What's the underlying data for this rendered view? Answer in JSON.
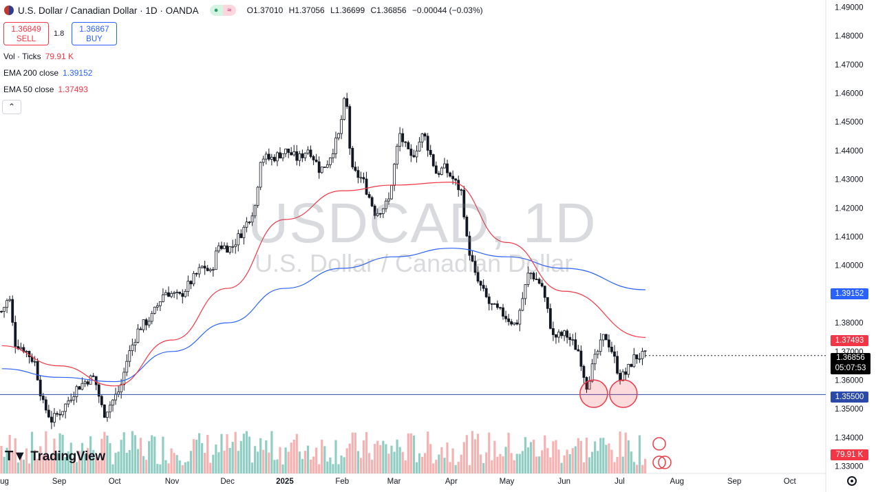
{
  "header": {
    "symbol_title": "U.S. Dollar / Canadian Dollar · 1D · OANDA",
    "ohlc": {
      "o_label": "O",
      "o": "1.37010",
      "h_label": "H",
      "h": "1.37056",
      "l_label": "L",
      "l": "1.36699",
      "c_label": "C",
      "c": "1.36856",
      "change": "−0.00044 (−0.03%)"
    }
  },
  "trade": {
    "sell_price": "1.36849",
    "sell_label": "SELL",
    "spread": "1.8",
    "buy_price": "1.36867",
    "buy_label": "BUY"
  },
  "legend": {
    "vol_label": "Vol · Ticks",
    "vol_value": "79.91 K",
    "ema200_label": "EMA 200 close",
    "ema200_value": "1.39152",
    "ema50_label": "EMA 50 close",
    "ema50_value": "1.37493"
  },
  "watermark": {
    "symbol": "USDCAD, 1D",
    "name": "U.S. Dollar / Canadian Dollar"
  },
  "logo": "TradingView",
  "price_labels": {
    "ema200": "1.39152",
    "ema50": "1.37493",
    "current": "1.36856",
    "countdown": "05:07:53",
    "support": "1.35500",
    "volume": "79.91 K"
  },
  "colors": {
    "up": "#089981",
    "down": "#131722",
    "ema50": "#f23645",
    "ema200": "#2962ff",
    "support": "#2a49a8",
    "vol_up": "#7dc5b8",
    "vol_down": "#f4a3a3",
    "circle": "#f23645"
  },
  "chart_data": {
    "type": "candlestick",
    "title": "USDCAD, 1D",
    "y_axis": {
      "ticks": [
        "1.49000",
        "1.48000",
        "1.47000",
        "1.46000",
        "1.45000",
        "1.44000",
        "1.43000",
        "1.42000",
        "1.41000",
        "1.40000",
        "1.39000",
        "1.38000",
        "1.37000",
        "1.36000",
        "1.35000",
        "1.34000",
        "1.33000"
      ],
      "ylim": [
        1.3275,
        1.4925
      ]
    },
    "x_axis": {
      "ticks": [
        "Aug",
        "Sep",
        "Oct",
        "Nov",
        "Dec",
        "2025",
        "Feb",
        "Mar",
        "Apr",
        "May",
        "Jun",
        "Jul",
        "Aug",
        "Sep",
        "Oct"
      ]
    },
    "price_path": [
      [
        "2024-08-01",
        1.384
      ],
      [
        "2024-08-05",
        1.389
      ],
      [
        "2024-08-08",
        1.373
      ],
      [
        "2024-08-13",
        1.371
      ],
      [
        "2024-08-19",
        1.366
      ],
      [
        "2024-08-23",
        1.352
      ],
      [
        "2024-08-28",
        1.346
      ],
      [
        "2024-09-03",
        1.35
      ],
      [
        "2024-09-10",
        1.357
      ],
      [
        "2024-09-16",
        1.36
      ],
      [
        "2024-09-20",
        1.361
      ],
      [
        "2024-09-25",
        1.348
      ],
      [
        "2024-09-30",
        1.353
      ],
      [
        "2024-10-04",
        1.357
      ],
      [
        "2024-10-08",
        1.368
      ],
      [
        "2024-10-14",
        1.378
      ],
      [
        "2024-10-21",
        1.382
      ],
      [
        "2024-10-28",
        1.391
      ],
      [
        "2024-11-05",
        1.389
      ],
      [
        "2024-11-12",
        1.395
      ],
      [
        "2024-11-18",
        1.4
      ],
      [
        "2024-11-22",
        1.397
      ],
      [
        "2024-11-26",
        1.407
      ],
      [
        "2024-12-03",
        1.406
      ],
      [
        "2024-12-10",
        1.413
      ],
      [
        "2024-12-16",
        1.421
      ],
      [
        "2024-12-19",
        1.438
      ],
      [
        "2024-12-24",
        1.437
      ],
      [
        "2025-01-02",
        1.44
      ],
      [
        "2025-01-08",
        1.437
      ],
      [
        "2025-01-14",
        1.441
      ],
      [
        "2025-01-20",
        1.433
      ],
      [
        "2025-01-24",
        1.436
      ],
      [
        "2025-01-30",
        1.445
      ],
      [
        "2025-02-03",
        1.46
      ],
      [
        "2025-02-06",
        1.433
      ],
      [
        "2025-02-12",
        1.43
      ],
      [
        "2025-02-19",
        1.418
      ],
      [
        "2025-02-26",
        1.422
      ],
      [
        "2025-03-04",
        1.446
      ],
      [
        "2025-03-10",
        1.437
      ],
      [
        "2025-03-17",
        1.446
      ],
      [
        "2025-03-24",
        1.432
      ],
      [
        "2025-03-28",
        1.434
      ],
      [
        "2025-04-02",
        1.43
      ],
      [
        "2025-04-07",
        1.425
      ],
      [
        "2025-04-09",
        1.41
      ],
      [
        "2025-04-14",
        1.396
      ],
      [
        "2025-04-22",
        1.386
      ],
      [
        "2025-04-29",
        1.383
      ],
      [
        "2025-05-06",
        1.379
      ],
      [
        "2025-05-13",
        1.398
      ],
      [
        "2025-05-20",
        1.393
      ],
      [
        "2025-05-26",
        1.375
      ],
      [
        "2025-06-02",
        1.376
      ],
      [
        "2025-06-09",
        1.37
      ],
      [
        "2025-06-13",
        1.358
      ],
      [
        "2025-06-18",
        1.368
      ],
      [
        "2025-06-23",
        1.376
      ],
      [
        "2025-06-27",
        1.37
      ],
      [
        "2025-07-01",
        1.361
      ],
      [
        "2025-07-04",
        1.362
      ],
      [
        "2025-07-09",
        1.368
      ],
      [
        "2025-07-15",
        1.3686
      ]
    ],
    "ema200": [
      [
        "2024-08-01",
        1.364
      ],
      [
        "2024-09-01",
        1.361
      ],
      [
        "2024-10-01",
        1.3595
      ],
      [
        "2024-11-01",
        1.37
      ],
      [
        "2024-12-01",
        1.38
      ],
      [
        "2025-01-01",
        1.392
      ],
      [
        "2025-02-01",
        1.399
      ],
      [
        "2025-03-01",
        1.403
      ],
      [
        "2025-04-01",
        1.406
      ],
      [
        "2025-05-01",
        1.403
      ],
      [
        "2025-06-01",
        1.399
      ],
      [
        "2025-07-15",
        1.3915
      ]
    ],
    "ema50": [
      [
        "2024-08-01",
        1.372
      ],
      [
        "2024-09-01",
        1.365
      ],
      [
        "2024-10-01",
        1.358
      ],
      [
        "2024-11-01",
        1.374
      ],
      [
        "2024-12-01",
        1.392
      ],
      [
        "2025-01-01",
        1.416
      ],
      [
        "2025-02-01",
        1.426
      ],
      [
        "2025-03-01",
        1.428
      ],
      [
        "2025-04-01",
        1.429
      ],
      [
        "2025-05-01",
        1.408
      ],
      [
        "2025-06-01",
        1.391
      ],
      [
        "2025-07-15",
        1.3749
      ]
    ],
    "support_level": 1.355,
    "highlighted_lows": [
      [
        "2025-06-17",
        1.3553
      ],
      [
        "2025-07-03",
        1.3553
      ]
    ],
    "last_price": 1.36856
  }
}
